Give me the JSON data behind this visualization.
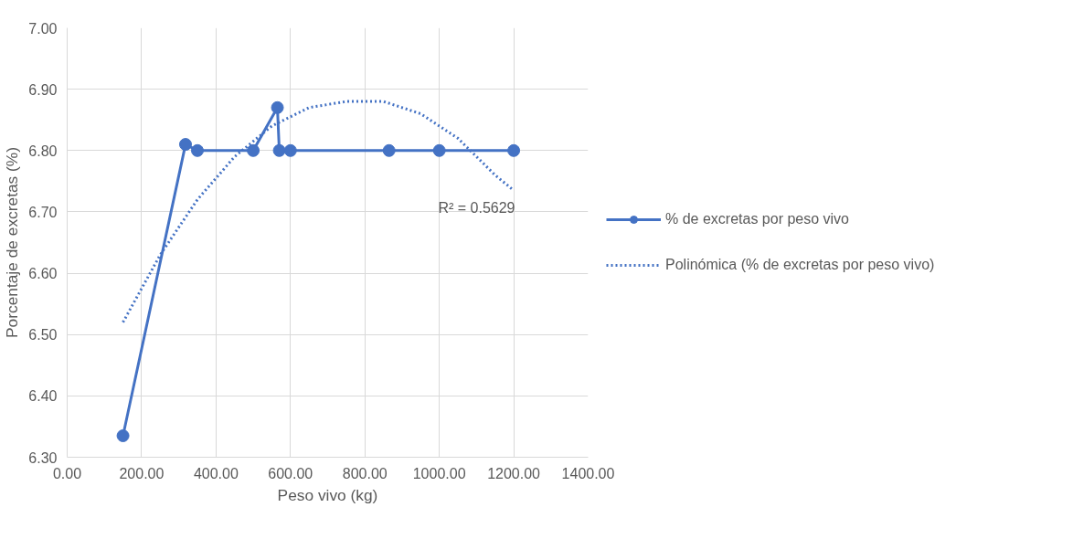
{
  "chart_data": {
    "type": "line",
    "xlabel": "Peso vivo (kg)",
    "ylabel": "Porcentaje de excretas (%)",
    "xlim": [
      0,
      1400
    ],
    "ylim": [
      6.3,
      7.0
    ],
    "xticks": [
      {
        "value": 0,
        "label": "0.00"
      },
      {
        "value": 200,
        "label": "200.00"
      },
      {
        "value": 400,
        "label": "400.00"
      },
      {
        "value": 600,
        "label": "600.00"
      },
      {
        "value": 800,
        "label": "800.00"
      },
      {
        "value": 1000,
        "label": "1000.00"
      },
      {
        "value": 1200,
        "label": "1200.00"
      },
      {
        "value": 1400,
        "label": "1400.00"
      }
    ],
    "yticks": [
      {
        "value": 6.3,
        "label": "6.30"
      },
      {
        "value": 6.4,
        "label": "6.40"
      },
      {
        "value": 6.5,
        "label": "6.50"
      },
      {
        "value": 6.6,
        "label": "6.60"
      },
      {
        "value": 6.7,
        "label": "6.70"
      },
      {
        "value": 6.8,
        "label": "6.80"
      },
      {
        "value": 6.9,
        "label": "6.90"
      },
      {
        "value": 7.0,
        "label": "7.00"
      }
    ],
    "grid": true,
    "legend": "right",
    "series": [
      {
        "name": "% de excretas por peso vivo",
        "color": "#4472c4",
        "marker": "circle",
        "line_style": "solid",
        "x": [
          150,
          318,
          350,
          500,
          565,
          570,
          600,
          865,
          1000,
          1200
        ],
        "values": [
          6.335,
          6.81,
          6.8,
          6.8,
          6.87,
          6.8,
          6.8,
          6.8,
          6.8,
          6.8
        ]
      },
      {
        "name": "Polinómica (% de excretas por peso vivo)",
        "color": "#4472c4",
        "marker": "none",
        "line_style": "dotted",
        "x": [
          150,
          250,
          350,
          450,
          550,
          650,
          750,
          850,
          950,
          1050,
          1150,
          1200
        ],
        "values": [
          6.52,
          6.63,
          6.72,
          6.79,
          6.84,
          6.87,
          6.88,
          6.88,
          6.86,
          6.82,
          6.76,
          6.735
        ]
      }
    ],
    "annotations": [
      "R² = 0.5629"
    ]
  }
}
